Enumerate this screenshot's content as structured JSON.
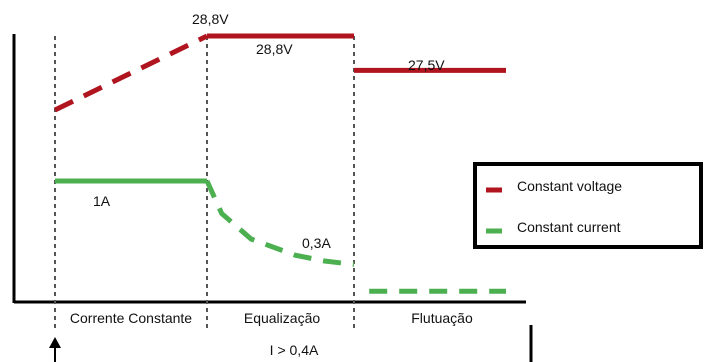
{
  "chart_data": {
    "type": "line",
    "title": "",
    "xlabel": "",
    "ylabel": "",
    "phases": [
      "Corrente Constante",
      "Equalização",
      "Flutuação"
    ],
    "phase_boundaries": [
      0,
      1,
      2,
      3
    ],
    "series": [
      {
        "name": "Constant voltage",
        "color": "#b0141e",
        "segments": [
          {
            "style": "dashed",
            "x": [
              0,
              1
            ],
            "y": [
              26.0,
              28.8
            ]
          },
          {
            "style": "solid",
            "x": [
              1,
              2
            ],
            "y": [
              28.8,
              28.8
            ]
          },
          {
            "style": "solid",
            "x": [
              2,
              3
            ],
            "y": [
              27.5,
              27.5
            ]
          }
        ]
      },
      {
        "name": "Constant current",
        "color": "#4caf50",
        "segments": [
          {
            "style": "solid",
            "x": [
              0,
              1
            ],
            "y": [
              1.0,
              1.0
            ]
          },
          {
            "style": "dashed",
            "x": [
              1,
              1.1,
              1.3,
              1.6,
              1.8,
              2.0
            ],
            "y": [
              1.0,
              0.72,
              0.5,
              0.36,
              0.31,
              0.28
            ]
          },
          {
            "style": "dashed",
            "x": [
              2.1,
              3.0
            ],
            "y": [
              0.05,
              0.05
            ]
          }
        ]
      }
    ],
    "annotations": [
      {
        "id": "v-peak",
        "text": "28,8V"
      },
      {
        "id": "v-equal",
        "text": "28,8V"
      },
      {
        "id": "v-float",
        "text": "27,5V"
      },
      {
        "id": "i-const",
        "text": "1A"
      },
      {
        "id": "i-low",
        "text": "0,3A"
      }
    ],
    "transition_label": "I > 0,4A",
    "legend": {
      "placement": "right"
    }
  }
}
